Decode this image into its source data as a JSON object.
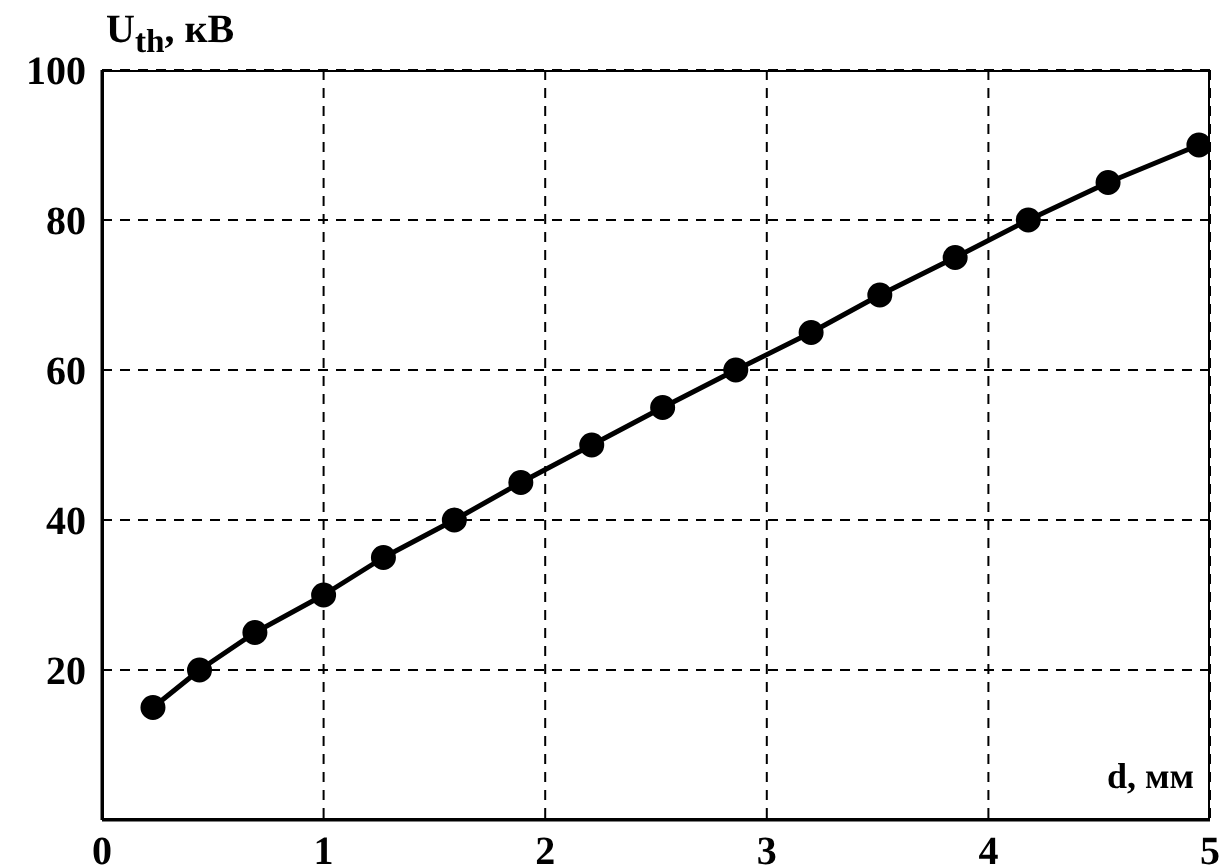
{
  "chart_data": {
    "type": "line",
    "xlabel": "d, мм",
    "ylabel": "U$_{th}$, кВ",
    "x": [
      0.23,
      0.44,
      0.69,
      1.0,
      1.27,
      1.59,
      1.89,
      2.21,
      2.53,
      2.86,
      3.2,
      3.51,
      3.85,
      4.18,
      4.54,
      4.95
    ],
    "series": [
      {
        "color": "#000000",
        "values": [
          15,
          20,
          25,
          30,
          35,
          40,
          45,
          50,
          55,
          60,
          65,
          70,
          75,
          80,
          85,
          90
        ]
      }
    ],
    "xlim": [
      0,
      5
    ],
    "xticks": [
      0,
      1,
      2,
      3,
      4,
      5
    ],
    "ylim": [
      0,
      100
    ],
    "yticks": [
      20,
      40,
      60,
      80,
      100
    ],
    "grid": true,
    "marker": "circle",
    "line_style": "solid"
  }
}
